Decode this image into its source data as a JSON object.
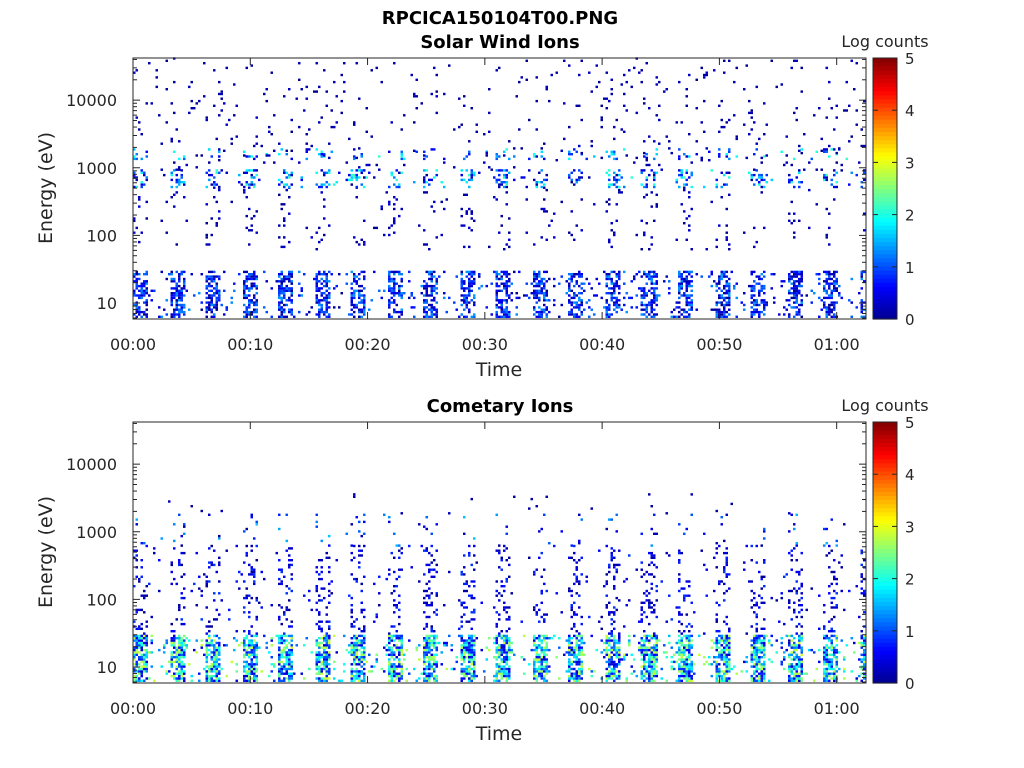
{
  "figure_title": "RPCICA150104T00.PNG",
  "colormap": [
    "#00008f",
    "#0000ff",
    "#0080ff",
    "#00ffff",
    "#80ff80",
    "#ffff00",
    "#ff8000",
    "#ff0000",
    "#800000"
  ],
  "chart_data": [
    {
      "type": "heatmap",
      "title": "Solar Wind Ions",
      "xlabel": "Time",
      "ylabel": "Energy (eV)",
      "x_ticks": [
        "00:00",
        "00:10",
        "00:20",
        "00:30",
        "00:40",
        "00:50",
        "01:00"
      ],
      "x_tick_minutes": [
        0,
        10,
        20,
        30,
        40,
        50,
        60
      ],
      "xlim_minutes": [
        0,
        62.5
      ],
      "y_scale": "log",
      "y_ticks": [
        "10",
        "100",
        "1000",
        "10000"
      ],
      "y_tick_values": [
        10,
        100,
        1000,
        10000
      ],
      "ylim": [
        5.8,
        42000
      ],
      "colorbar": {
        "label": "Log counts",
        "ticks": [
          "0",
          "1",
          "2",
          "3",
          "4",
          "5"
        ],
        "range": [
          0,
          5
        ]
      },
      "bands": [
        {
          "energy_range_eV": [
            6,
            28
          ],
          "occupancy": 0.55,
          "value_range": [
            0.0,
            1.4
          ],
          "approx_period_minutes": 3.1
        },
        {
          "energy_range_eV": [
            60,
            500
          ],
          "occupancy": 0.06,
          "value_range": [
            0.0,
            0.4
          ],
          "approx_period_minutes": 3.1
        },
        {
          "energy_range_eV": [
            500,
            900
          ],
          "occupancy": 0.3,
          "value_range": [
            0.0,
            2.2
          ],
          "approx_period_minutes": 3.1
        },
        {
          "energy_range_eV": [
            1300,
            1800
          ],
          "occupancy": 0.18,
          "value_range": [
            0.3,
            2.2
          ],
          "approx_period_minutes": 3.1
        },
        {
          "energy_range_eV": [
            900,
            42000
          ],
          "occupancy": 0.025,
          "value_range": [
            0.0,
            0.3
          ],
          "approx_period_minutes": 0
        }
      ]
    },
    {
      "type": "heatmap",
      "title": "Cometary Ions",
      "xlabel": "Time",
      "ylabel": "Energy (eV)",
      "x_ticks": [
        "00:00",
        "00:10",
        "00:20",
        "00:30",
        "00:40",
        "00:50",
        "01:00"
      ],
      "x_tick_minutes": [
        0,
        10,
        20,
        30,
        40,
        50,
        60
      ],
      "xlim_minutes": [
        0,
        62.5
      ],
      "y_scale": "log",
      "y_ticks": [
        "10",
        "100",
        "1000",
        "10000"
      ],
      "y_tick_values": [
        10,
        100,
        1000,
        10000
      ],
      "ylim": [
        5.8,
        42000
      ],
      "colorbar": {
        "label": "Log counts",
        "ticks": [
          "0",
          "1",
          "2",
          "3",
          "4",
          "5"
        ],
        "range": [
          0,
          5
        ]
      },
      "bands": [
        {
          "energy_range_eV": [
            6,
            30
          ],
          "occupancy": 0.75,
          "value_range": [
            0.3,
            2.9
          ],
          "approx_period_minutes": 3.1
        },
        {
          "energy_range_eV": [
            30,
            600
          ],
          "occupancy": 0.16,
          "value_range": [
            0.0,
            0.9
          ],
          "approx_period_minutes": 3.1
        },
        {
          "energy_range_eV": [
            600,
            1800
          ],
          "occupancy": 0.06,
          "value_range": [
            0.0,
            1.6
          ],
          "approx_period_minutes": 3.1
        },
        {
          "energy_range_eV": [
            1800,
            3500
          ],
          "occupancy": 0.01,
          "value_range": [
            0.0,
            0.3
          ],
          "approx_period_minutes": 0
        }
      ]
    }
  ]
}
